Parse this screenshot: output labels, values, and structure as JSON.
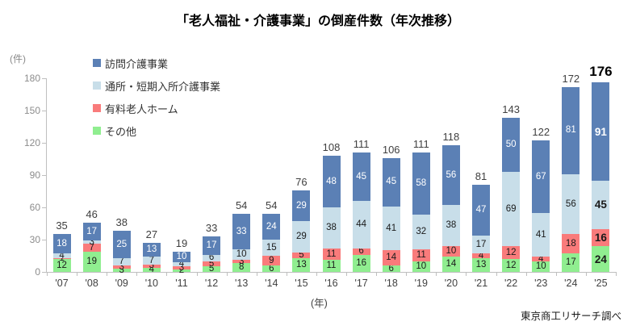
{
  "title": "「老人福祉・介護事業」の倒産件数（年次推移）",
  "y_axis_unit": "(件)",
  "x_axis_unit": "(年)",
  "source": "東京商工リサーチ調べ",
  "colors": {
    "homon_blue": "#5b80b5",
    "tsusho_lightblue": "#c8dee9",
    "home_red": "#f97b7b",
    "sonota_green": "#90ee90",
    "axis_gray": "#bfbfbf",
    "tick_label_gray": "#8c8c8c"
  },
  "chart_data": {
    "type": "bar",
    "stacked": true,
    "grid": false,
    "legend_position": "top-left",
    "categories": [
      "'07",
      "'08",
      "'09",
      "'10",
      "'11",
      "'12",
      "'13",
      "'14",
      "'15",
      "'16",
      "'17",
      "'18",
      "'19",
      "'20",
      "'21",
      "'22",
      "'23",
      "'24",
      "'25"
    ],
    "series": [
      {
        "name": "訪問介護事業",
        "color": "#5b80b5",
        "label_color": "#ffffff",
        "values": [
          18,
          17,
          25,
          13,
          10,
          17,
          33,
          24,
          29,
          48,
          45,
          45,
          58,
          56,
          47,
          50,
          67,
          81,
          91
        ]
      },
      {
        "name": "通所・短期入所介護事業",
        "color": "#c8dee9",
        "label_color": "#1a1a1a",
        "values": [
          4,
          3,
          7,
          7,
          4,
          6,
          10,
          15,
          29,
          38,
          44,
          41,
          32,
          38,
          17,
          69,
          41,
          56,
          45
        ]
      },
      {
        "name": "有料老人ホーム",
        "color": "#f97b7b",
        "label_color": "#1a1a1a",
        "values": [
          1,
          7,
          3,
          3,
          3,
          5,
          3,
          9,
          5,
          11,
          6,
          14,
          11,
          10,
          4,
          12,
          4,
          18,
          16
        ]
      },
      {
        "name": "その他",
        "color": "#90ee90",
        "label_color": "#1a1a1a",
        "values": [
          12,
          19,
          3,
          4,
          2,
          5,
          8,
          6,
          13,
          11,
          16,
          6,
          10,
          14,
          13,
          12,
          10,
          17,
          24
        ]
      }
    ],
    "totals": [
      35,
      46,
      38,
      27,
      19,
      33,
      54,
      54,
      76,
      108,
      111,
      106,
      111,
      118,
      81,
      143,
      122,
      172,
      176
    ],
    "ylim": [
      0,
      180
    ],
    "yticks": [
      0,
      30,
      60,
      90,
      120,
      150,
      180
    ],
    "highlight_last_category": true
  }
}
